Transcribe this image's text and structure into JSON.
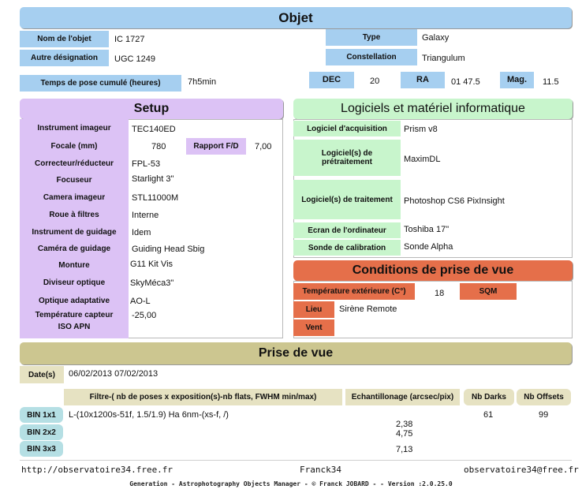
{
  "objet": {
    "header": "Objet",
    "nom_label": "Nom de l'objet",
    "nom_value": "IC  1727",
    "autre_label": "Autre désignation",
    "autre_value": "UGC  1249",
    "temps_label": "Temps de pose cumulé (heures)",
    "temps_value": "7h5min",
    "type_label": "Type",
    "type_value": "Galaxy",
    "constellation_label": "Constellation",
    "constellation_value": "Triangulum",
    "dec_label": "DEC",
    "dec_value": "20",
    "ra_label": "RA",
    "ra_value": "01 47.5",
    "mag_label": "Mag.",
    "mag_value": "11.5"
  },
  "setup": {
    "header": "Setup",
    "rows": [
      {
        "label": "Instrument imageur",
        "value": "TEC140ED"
      },
      {
        "label": "Focale (mm)",
        "value": "780"
      },
      {
        "label": "Correcteur/réducteur",
        "value": "FPL-53"
      },
      {
        "label": "Focuseur",
        "value": "Starlight 3\""
      },
      {
        "label": "Camera imageur",
        "value": "STL11000M"
      },
      {
        "label": "Roue à filtres",
        "value": "Interne"
      },
      {
        "label": "Instrument de guidage",
        "value": "Idem"
      },
      {
        "label": "Caméra de guidage",
        "value": "Guiding Head Sbig"
      },
      {
        "label": "Monture",
        "value": "G11 Kit Vis"
      },
      {
        "label": "Diviseur optique",
        "value": "SkyMéca3\""
      },
      {
        "label": "Optique adaptative",
        "value": "AO-L"
      },
      {
        "label": "Température capteur",
        "value": "-25,00"
      },
      {
        "label": "ISO APN",
        "value": ""
      }
    ],
    "rapport_label": "Rapport F/D",
    "rapport_value": "7,00"
  },
  "logiciels": {
    "header": "Logiciels et matériel informatique",
    "rows": [
      {
        "label": "Logiciel d'acquisition",
        "value": "Prism v8"
      },
      {
        "label": "Logiciel(s) de prétraitement",
        "value": "MaximDL"
      },
      {
        "label": "Logiciel(s) de traitement",
        "value": "Photoshop CS6 PixInsight"
      },
      {
        "label": "Ecran de l'ordinateur",
        "value": "Toshiba 17\""
      },
      {
        "label": "Sonde de calibration",
        "value": "Sonde Alpha"
      }
    ]
  },
  "conditions": {
    "header": "Conditions de prise de vue",
    "temp_label": "Température extérieure (C°)",
    "temp_value": "18",
    "sqm_label": "SQM",
    "lieu_label": "Lieu",
    "lieu_value": "Sirène Remote",
    "vent_label": "Vent"
  },
  "prise": {
    "header": "Prise de vue",
    "dates_label": "Date(s)",
    "dates_value": "06/02/2013 07/02/2013",
    "col_filtre": "Filtre-( nb de poses  x  exposition(s)-nb flats, FWHM min/max)",
    "col_echant": "Echantillonage (arcsec/pix)",
    "col_darks": "Nb Darks",
    "col_offsets": "Nb Offsets",
    "bin1_label": "BIN 1x1",
    "bin2_label": "BIN 2x2",
    "bin3_label": "BIN 3x3",
    "filtre_value": "L-(10x1200s-51f, 1.5/1.9) Ha 6nm-(xs-f, /)",
    "echant_1": "2,38",
    "echant_2": "4,75",
    "echant_3": "7,13",
    "darks_value": "61",
    "offsets_value": "99"
  },
  "footer": {
    "left": "http://observatoire34.free.fr",
    "center": "Franck34",
    "right": "observatoire34@free.fr",
    "generation": "Generation - Astrophotography Objects Manager - © Franck JOBARD -  - Version :2.0.25.0"
  }
}
